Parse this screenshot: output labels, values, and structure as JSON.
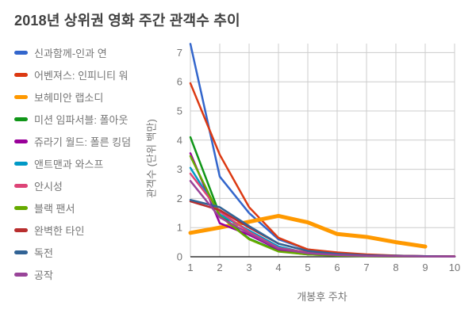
{
  "header": {
    "title": "2018년 상위권 영화 주간 관객수 추이"
  },
  "colors": {
    "gridline": "#cccccc",
    "baseline": "#333333",
    "tick_text": "#757575",
    "title_text": "#404040",
    "background": "#ffffff"
  },
  "chart_data": {
    "type": "line",
    "title": "2018년 상위권 영화 주간 관객수 추이",
    "xlabel": "개봉후 주차",
    "ylabel": "관객수 (단위 백만)",
    "x": [
      1,
      2,
      3,
      4,
      5,
      6,
      7,
      8,
      9,
      10
    ],
    "x_ticks": [
      1,
      2,
      3,
      4,
      5,
      6,
      7,
      8,
      9,
      10
    ],
    "y_ticks": [
      0,
      1,
      2,
      3,
      4,
      5,
      6,
      7
    ],
    "ylim": [
      0,
      7.3
    ],
    "grid": true,
    "legend_position": "left",
    "series": [
      {
        "name": "신과함께-인과 연",
        "color": "#3366CC",
        "line_width": 2.5,
        "values": [
          7.3,
          2.75,
          1.5,
          0.6,
          0.25,
          0.12,
          0.06,
          0.04,
          0.02,
          0.01
        ]
      },
      {
        "name": "어벤져스: 인피니티 워",
        "color": "#DC3912",
        "line_width": 2.5,
        "values": [
          5.95,
          3.5,
          1.7,
          0.65,
          0.25,
          0.15,
          0.08,
          0.04,
          0.02,
          0.01
        ]
      },
      {
        "name": "보헤미안 랩소디",
        "color": "#FF9900",
        "line_width": 5,
        "values": [
          0.82,
          1.0,
          1.2,
          1.4,
          1.18,
          0.78,
          0.68,
          0.5,
          0.35,
          null
        ]
      },
      {
        "name": "미션 임파서블: 폴아웃",
        "color": "#109618",
        "line_width": 2.5,
        "values": [
          4.1,
          1.45,
          0.62,
          0.2,
          0.08,
          0.04,
          0.02,
          0.01,
          0.01,
          0.01
        ]
      },
      {
        "name": "쥬라기 월드: 폴른 킹덤",
        "color": "#990099",
        "line_width": 2.5,
        "values": [
          3.55,
          1.15,
          0.75,
          0.25,
          0.1,
          0.05,
          0.03,
          0.02,
          0.01,
          0.01
        ]
      },
      {
        "name": "앤트맨과 와스프",
        "color": "#0099C6",
        "line_width": 2.5,
        "values": [
          3.05,
          1.45,
          0.9,
          0.35,
          0.12,
          0.06,
          0.03,
          0.02,
          0.01,
          0.01
        ]
      },
      {
        "name": "안시성",
        "color": "#DD4477",
        "line_width": 2.5,
        "values": [
          2.85,
          1.55,
          0.85,
          0.3,
          0.15,
          0.07,
          0.04,
          0.03,
          0.02,
          0.02
        ]
      },
      {
        "name": "블랙 팬서",
        "color": "#66AA00",
        "line_width": 2.5,
        "values": [
          3.45,
          1.4,
          0.6,
          0.18,
          0.08,
          0.04,
          0.02,
          0.01,
          0.01,
          0.01
        ]
      },
      {
        "name": "완벽한 타인",
        "color": "#B82E2E",
        "line_width": 2.5,
        "values": [
          1.9,
          1.6,
          1.0,
          0.45,
          0.2,
          0.1,
          0.05,
          0.03,
          0.02,
          0.01
        ]
      },
      {
        "name": "독전",
        "color": "#316395",
        "line_width": 2.5,
        "values": [
          1.95,
          1.7,
          1.05,
          0.45,
          0.2,
          0.1,
          0.05,
          0.03,
          0.02,
          0.01
        ]
      },
      {
        "name": "공작",
        "color": "#994499",
        "line_width": 2.5,
        "values": [
          2.6,
          1.35,
          0.8,
          0.28,
          0.12,
          0.06,
          0.03,
          0.02,
          0.01,
          0.01
        ]
      }
    ]
  }
}
